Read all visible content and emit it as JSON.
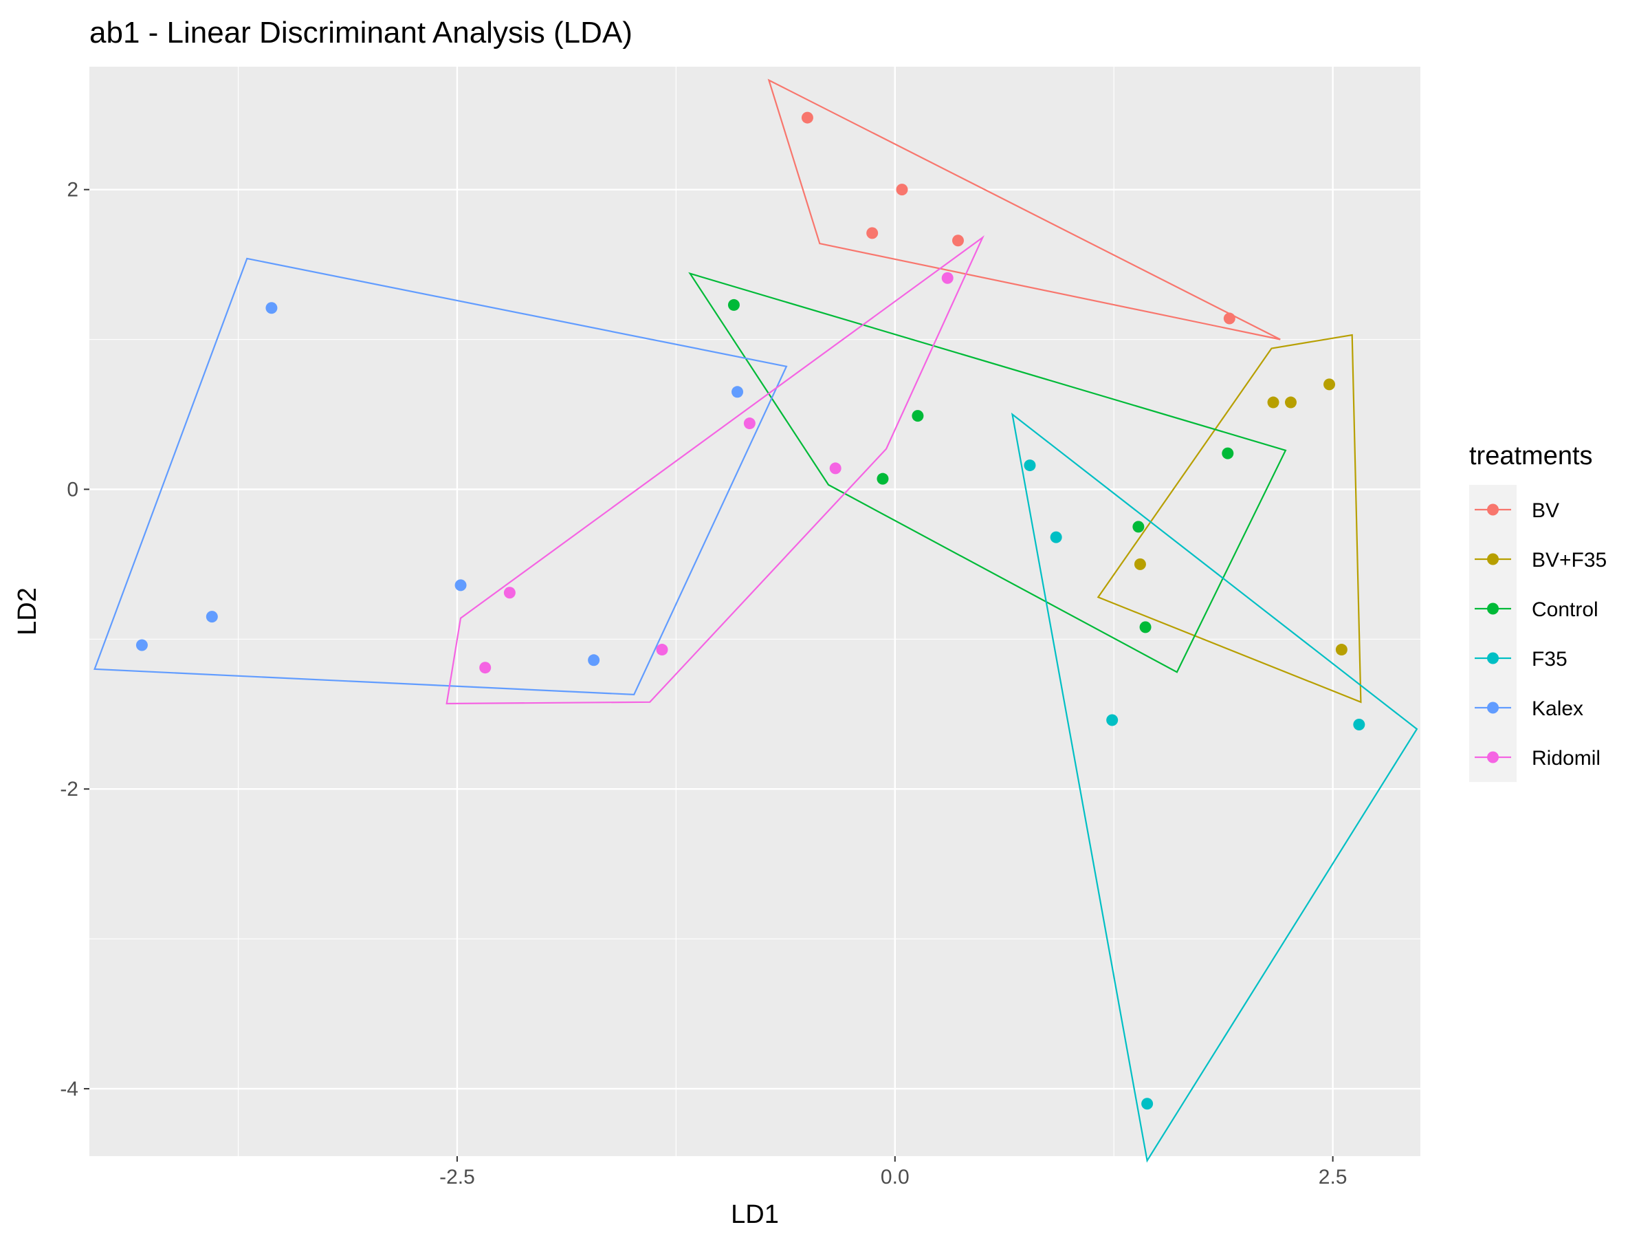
{
  "chart_data": {
    "type": "scatter",
    "title": "ab1 - Linear Discriminant Analysis (LDA)",
    "xlabel": "LD1",
    "ylabel": "LD2",
    "xlim": [
      -4.6,
      3.0
    ],
    "ylim": [
      -4.45,
      2.82
    ],
    "x_ticks": [
      -2.5,
      0.0,
      2.5
    ],
    "x_tick_labels": [
      "-2.5",
      "0.0",
      "2.5"
    ],
    "y_ticks": [
      -4,
      -2,
      0,
      2
    ],
    "y_tick_labels": [
      "-4",
      "-2",
      "0",
      "2"
    ],
    "x_minor": [
      -3.75,
      -1.25,
      1.25
    ],
    "y_minor": [
      -3,
      -1,
      1
    ],
    "grid": true,
    "panel_background": "#ebebeb",
    "legend_title": "treatments",
    "legend_position": "right",
    "series": [
      {
        "name": "BV",
        "color": "#F8766D",
        "points": [
          [
            -0.5,
            2.48
          ],
          [
            0.04,
            2.0
          ],
          [
            -0.13,
            1.71
          ],
          [
            0.36,
            1.66
          ],
          [
            1.91,
            1.14
          ]
        ],
        "hull": [
          [
            -0.72,
            2.73
          ],
          [
            2.2,
            1.0
          ],
          [
            -0.43,
            1.64
          ]
        ]
      },
      {
        "name": "BV+F35",
        "color": "#B79F00",
        "points": [
          [
            2.16,
            0.58
          ],
          [
            2.26,
            0.58
          ],
          [
            2.48,
            0.7
          ],
          [
            1.4,
            -0.5
          ],
          [
            2.55,
            -1.07
          ]
        ],
        "hull": [
          [
            2.15,
            0.94
          ],
          [
            2.61,
            1.03
          ],
          [
            2.66,
            -1.42
          ],
          [
            1.16,
            -0.72
          ]
        ]
      },
      {
        "name": "Control",
        "color": "#00BA38",
        "points": [
          [
            -0.92,
            1.23
          ],
          [
            0.13,
            0.49
          ],
          [
            -0.07,
            0.07
          ],
          [
            1.9,
            0.24
          ],
          [
            1.39,
            -0.25
          ],
          [
            1.43,
            -0.92
          ]
        ],
        "hull": [
          [
            -1.17,
            1.44
          ],
          [
            2.23,
            0.26
          ],
          [
            1.61,
            -1.22
          ],
          [
            -0.38,
            0.03
          ]
        ]
      },
      {
        "name": "F35",
        "color": "#00BFC4",
        "points": [
          [
            0.77,
            0.16
          ],
          [
            0.92,
            -0.32
          ],
          [
            1.24,
            -1.54
          ],
          [
            2.65,
            -1.57
          ],
          [
            1.44,
            -4.1
          ]
        ],
        "hull": [
          [
            0.67,
            0.5
          ],
          [
            2.98,
            -1.6
          ],
          [
            1.44,
            -4.48
          ]
        ]
      },
      {
        "name": "Kalex",
        "color": "#619CFF",
        "points": [
          [
            -3.56,
            1.21
          ],
          [
            -0.9,
            0.65
          ],
          [
            -2.48,
            -0.64
          ],
          [
            -3.9,
            -0.85
          ],
          [
            -4.3,
            -1.04
          ],
          [
            -1.72,
            -1.14
          ]
        ],
        "hull": [
          [
            -3.7,
            1.54
          ],
          [
            -0.62,
            0.82
          ],
          [
            -1.49,
            -1.37
          ],
          [
            -4.57,
            -1.2
          ]
        ]
      },
      {
        "name": "Ridomil",
        "color": "#F564E3",
        "points": [
          [
            0.3,
            1.41
          ],
          [
            -0.83,
            0.44
          ],
          [
            -0.34,
            0.14
          ],
          [
            -2.2,
            -0.69
          ],
          [
            -2.34,
            -1.19
          ],
          [
            -1.33,
            -1.07
          ]
        ],
        "hull": [
          [
            0.5,
            1.68
          ],
          [
            -0.05,
            0.27
          ],
          [
            -1.4,
            -1.42
          ],
          [
            -2.56,
            -1.43
          ],
          [
            -2.48,
            -0.86
          ]
        ]
      }
    ]
  }
}
